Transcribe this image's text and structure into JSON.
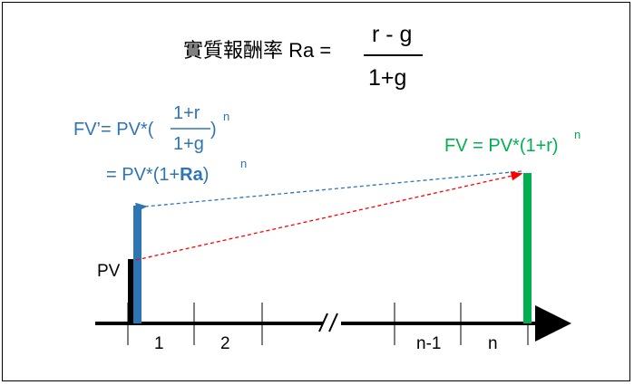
{
  "formula": {
    "title_prefix": "實質報酬率 Ra =",
    "numerator": "r - g",
    "denominator": "1+g"
  },
  "fv_prime": {
    "prefix": "FV’= PV*(",
    "frac_num": "1+r",
    "frac_den": "1+g",
    "paren_close": ")",
    "exponent": "n",
    "line2_prefix": "= PV*(1+",
    "line2_bold": "Ra",
    "line2_suffix": ")",
    "line2_exponent": "n"
  },
  "fv": {
    "text": "FV = PV*(1+r)",
    "exponent": "n"
  },
  "pv_label": "PV",
  "period_labels": [
    "1",
    "2",
    "n-1",
    "n"
  ],
  "colors": {
    "blue": "#2e75b6",
    "green": "#00b050",
    "red": "#ff0000",
    "black": "#000000"
  }
}
